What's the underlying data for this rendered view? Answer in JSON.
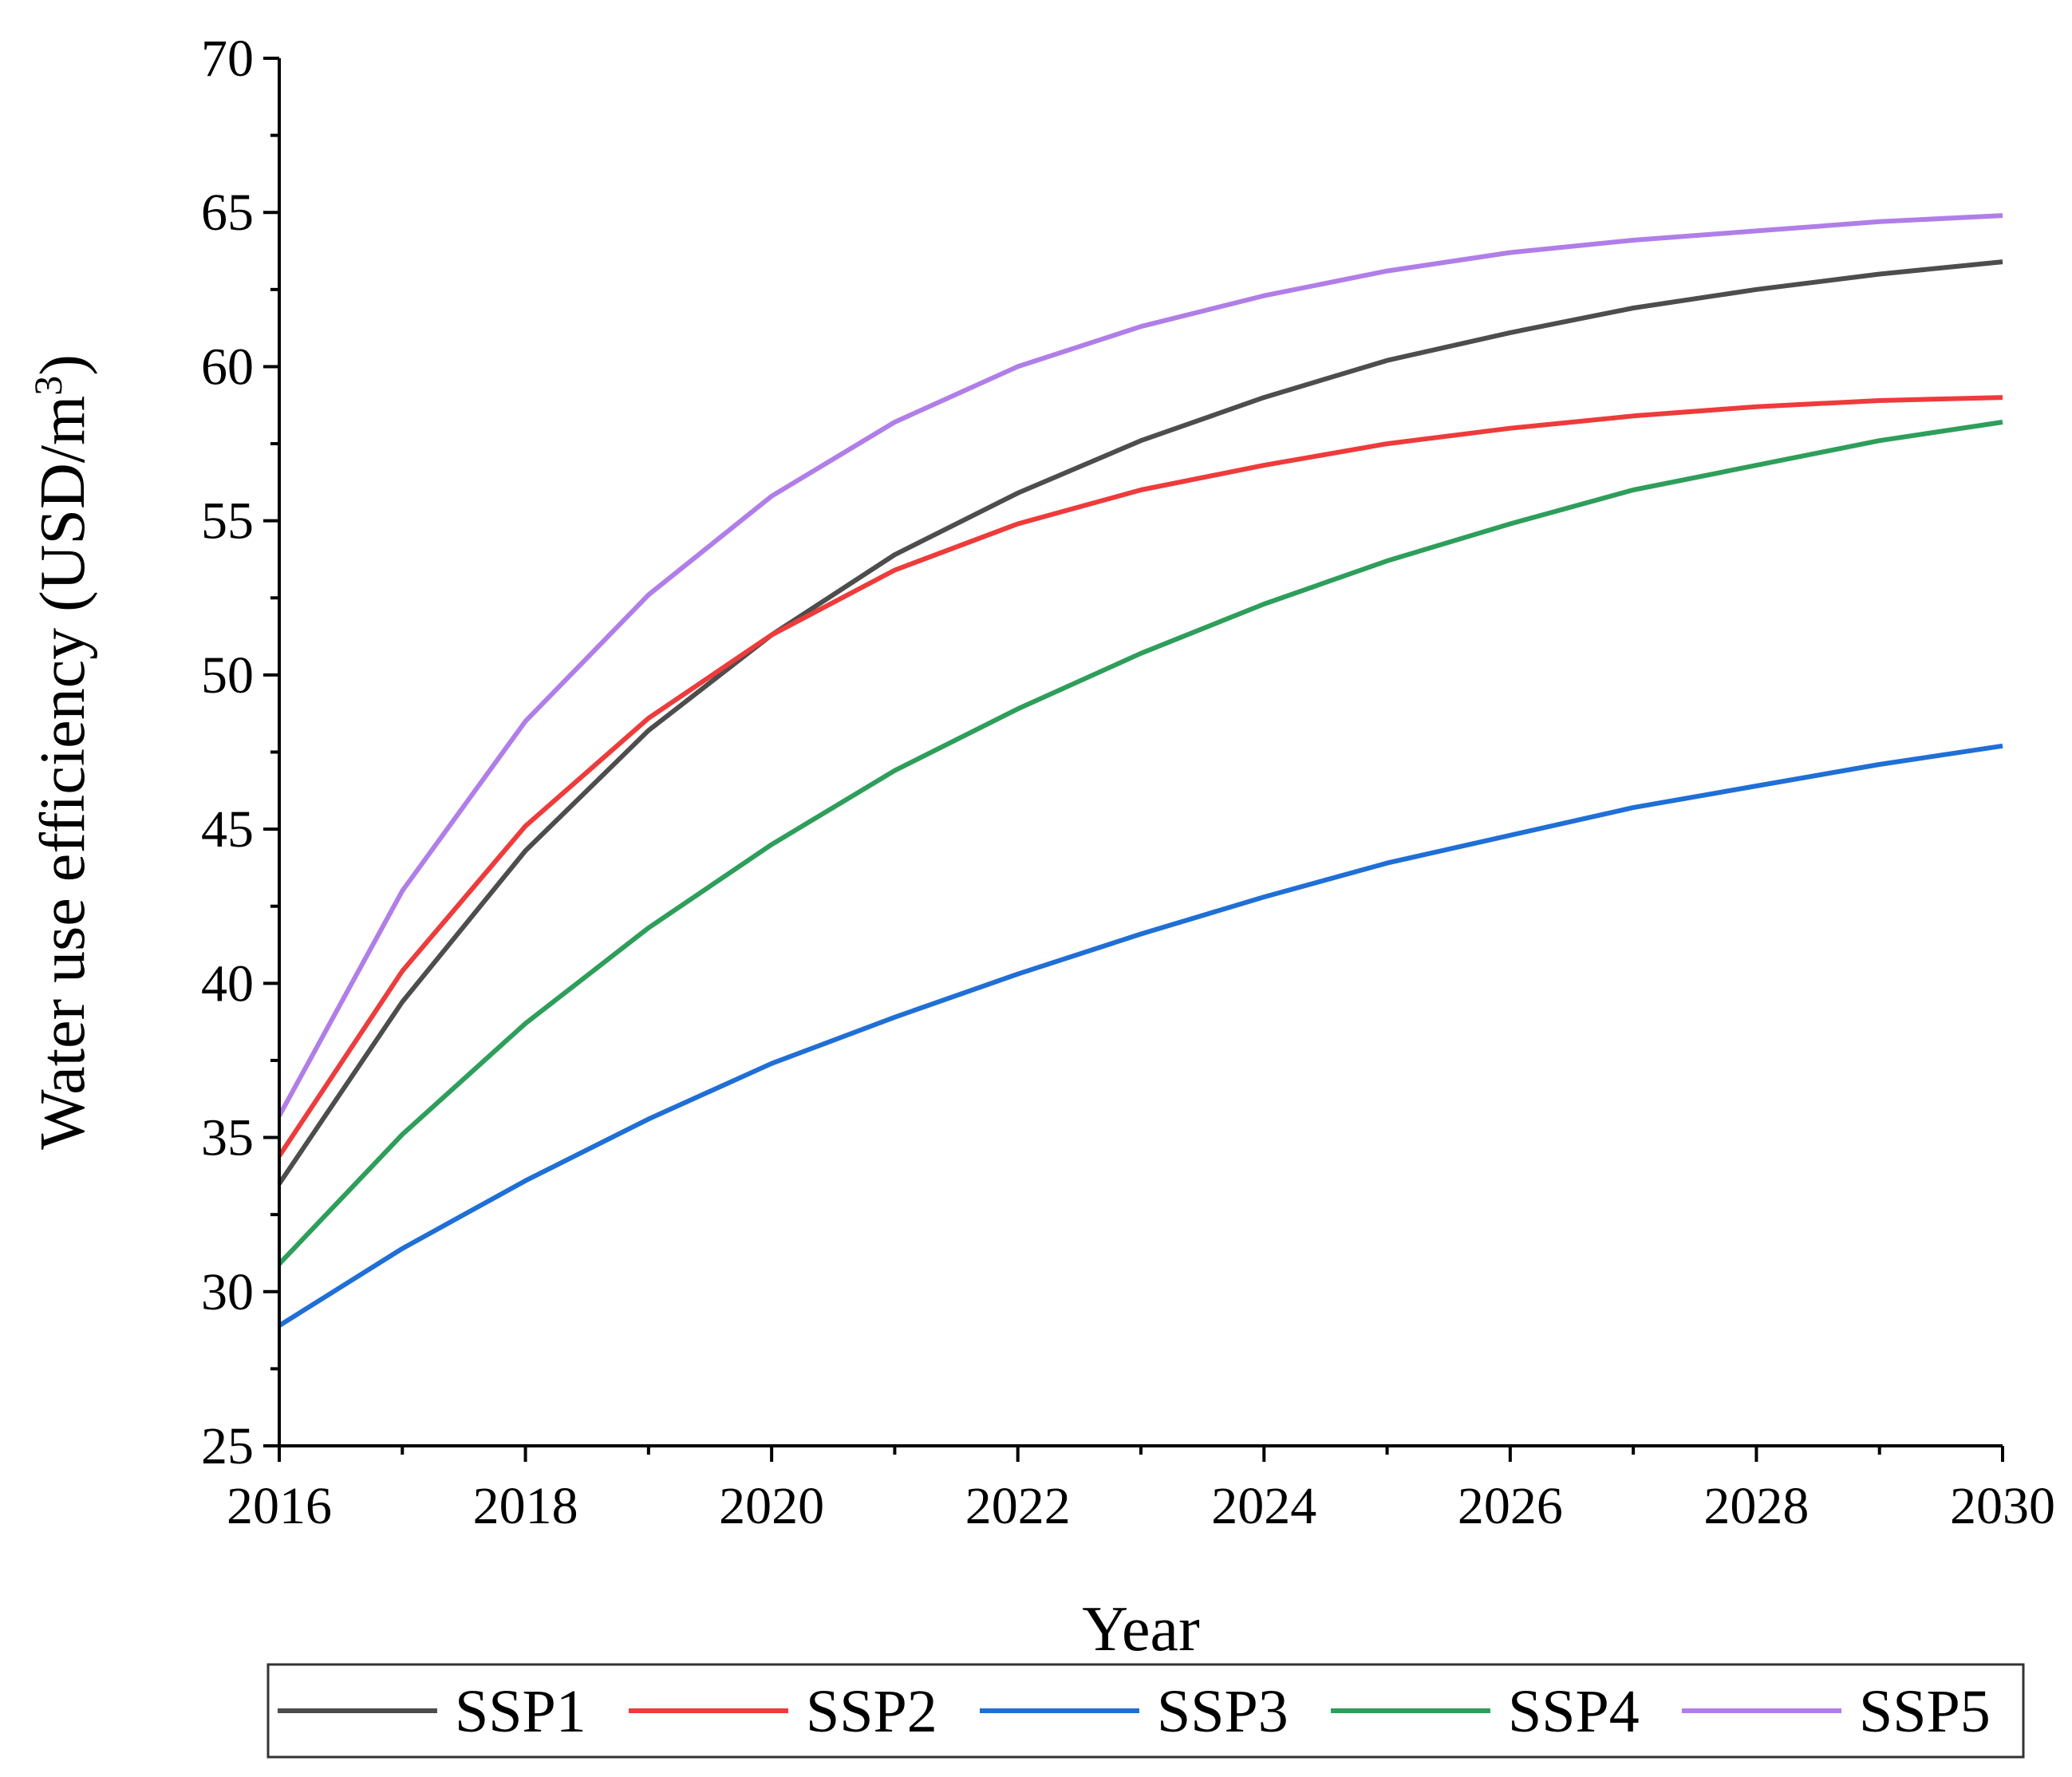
{
  "chart_data": {
    "type": "line",
    "title": "",
    "xlabel": "Year",
    "ylabel_main": "Water use efficiency (USD/m",
    "ylabel_sup": "3",
    "ylabel_close": ")",
    "xlim": [
      2016,
      2030
    ],
    "ylim": [
      25,
      70
    ],
    "x_ticks": [
      2016,
      2018,
      2020,
      2022,
      2024,
      2026,
      2028,
      2030
    ],
    "y_ticks": [
      25,
      30,
      35,
      40,
      45,
      50,
      55,
      60,
      65,
      70
    ],
    "grid": false,
    "legend_position": "bottom",
    "x": [
      2016,
      2017,
      2018,
      2019,
      2020,
      2021,
      2022,
      2023,
      2024,
      2025,
      2026,
      2027,
      2028,
      2029,
      2030
    ],
    "series": [
      {
        "name": "SSP1",
        "color": "#4d4d4d",
        "values": [
          33.5,
          39.4,
          44.3,
          48.2,
          51.3,
          53.9,
          55.9,
          57.6,
          59.0,
          60.2,
          61.1,
          61.9,
          62.5,
          63.0,
          63.4
        ]
      },
      {
        "name": "SSP2",
        "color": "#ee3b3b",
        "values": [
          34.4,
          40.4,
          45.1,
          48.6,
          51.3,
          53.4,
          54.9,
          56.0,
          56.8,
          57.5,
          58.0,
          58.4,
          58.7,
          58.9,
          59.0
        ]
      },
      {
        "name": "SSP3",
        "color": "#1f6fd6",
        "values": [
          28.9,
          31.4,
          33.6,
          35.6,
          37.4,
          38.9,
          40.3,
          41.6,
          42.8,
          43.9,
          44.8,
          45.7,
          46.4,
          47.1,
          47.7
        ]
      },
      {
        "name": "SSP4",
        "color": "#2e9e5b",
        "values": [
          30.9,
          35.1,
          38.7,
          41.8,
          44.5,
          46.9,
          48.9,
          50.7,
          52.3,
          53.7,
          54.9,
          56.0,
          56.8,
          57.6,
          58.2
        ]
      },
      {
        "name": "SSP5",
        "color": "#b07ee8",
        "values": [
          35.7,
          43.0,
          48.5,
          52.6,
          55.8,
          58.2,
          60.0,
          61.3,
          62.3,
          63.1,
          63.7,
          64.1,
          64.4,
          64.7,
          64.9
        ]
      }
    ]
  }
}
